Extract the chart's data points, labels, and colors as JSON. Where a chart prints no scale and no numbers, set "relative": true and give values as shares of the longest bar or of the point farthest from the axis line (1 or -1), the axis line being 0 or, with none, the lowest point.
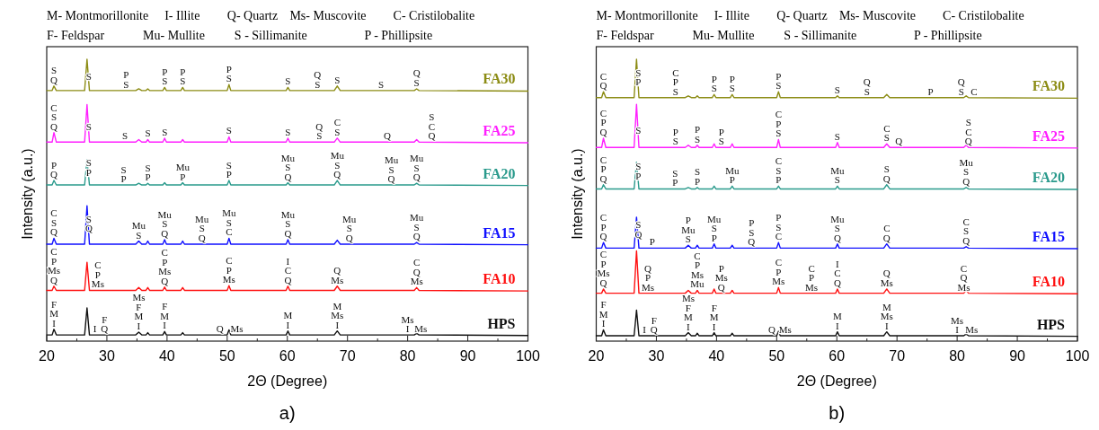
{
  "chart_data": [
    {
      "type": "line",
      "title": "a)",
      "xlabel": "2Θ (Degree)",
      "ylabel": "Intensity (a.u.)",
      "relative": true,
      "xlim": [
        20,
        100
      ],
      "xticks": [
        20,
        {
          "value": 25,
          "label": null
        },
        30,
        {
          "value": 35,
          "label": null
        },
        40,
        {
          "value": 45,
          "label": null
        },
        50,
        {
          "value": 55,
          "label": null
        },
        60,
        {
          "value": 65,
          "label": null
        },
        70,
        {
          "value": 75,
          "label": null
        },
        80,
        {
          "value": 85,
          "label": null
        },
        90,
        {
          "value": 95,
          "label": null
        },
        100
      ],
      "x": [
        20,
        20.9,
        21.2,
        21.6,
        26.3,
        26.7,
        27.1,
        34.8,
        35.3,
        35.8,
        36.5,
        36.8,
        37.1,
        39.3,
        39.6,
        39.9,
        42.3,
        42.6,
        42.9,
        50,
        50.3,
        50.6,
        59.8,
        60.1,
        60.4,
        67.8,
        68.3,
        68.8,
        81.1,
        81.5,
        81.9,
        100
      ],
      "series": [
        {
          "name": "FA30",
          "color": "#8c8c14",
          "values": [
            0.889,
            0.889,
            0.905,
            0.889,
            0.889,
            1,
            0.889,
            0.889,
            0.895,
            0.889,
            0.889,
            0.895,
            0.889,
            0.889,
            0.9,
            0.889,
            0.889,
            0.9,
            0.889,
            0.889,
            0.91,
            0.889,
            0.889,
            0.9,
            0.889,
            0.889,
            0.905,
            0.889,
            0.889,
            0.895,
            0.889,
            0.887
          ]
        },
        {
          "name": "FA25",
          "color": "#ff1fff",
          "values": [
            0.706,
            0.706,
            0.74,
            0.706,
            0.706,
            0.839,
            0.706,
            0.706,
            0.715,
            0.706,
            0.706,
            0.715,
            0.706,
            0.706,
            0.72,
            0.706,
            0.706,
            0.715,
            0.706,
            0.706,
            0.725,
            0.706,
            0.706,
            0.72,
            0.706,
            0.706,
            0.72,
            0.706,
            0.706,
            0.715,
            0.706,
            0.704
          ]
        },
        {
          "name": "FA20",
          "color": "#2a9a8c",
          "values": [
            0.554,
            0.554,
            0.57,
            0.554,
            0.554,
            0.644,
            0.554,
            0.554,
            0.56,
            0.554,
            0.554,
            0.56,
            0.554,
            0.554,
            0.562,
            0.554,
            0.554,
            0.562,
            0.554,
            0.554,
            0.57,
            0.554,
            0.554,
            0.562,
            0.554,
            0.554,
            0.57,
            0.554,
            0.554,
            0.56,
            0.554,
            0.552
          ]
        },
        {
          "name": "FA15",
          "color": "#1010ff",
          "values": [
            0.344,
            0.344,
            0.365,
            0.344,
            0.344,
            0.48,
            0.344,
            0.344,
            0.355,
            0.344,
            0.344,
            0.355,
            0.344,
            0.344,
            0.36,
            0.344,
            0.344,
            0.355,
            0.344,
            0.344,
            0.365,
            0.344,
            0.344,
            0.36,
            0.344,
            0.344,
            0.358,
            0.344,
            0.344,
            0.35,
            0.344,
            0.342
          ]
        },
        {
          "name": "FA10",
          "color": "#ff1010",
          "values": [
            0.18,
            0.18,
            0.195,
            0.18,
            0.18,
            0.28,
            0.18,
            0.18,
            0.19,
            0.18,
            0.18,
            0.19,
            0.18,
            0.18,
            0.192,
            0.18,
            0.18,
            0.19,
            0.18,
            0.18,
            0.197,
            0.18,
            0.18,
            0.195,
            0.18,
            0.18,
            0.195,
            0.18,
            0.18,
            0.19,
            0.18,
            0.178
          ]
        },
        {
          "name": "HPS",
          "color": "#111111",
          "values": [
            0.022,
            0.022,
            0.042,
            0.022,
            0.022,
            0.118,
            0.022,
            0.022,
            0.032,
            0.022,
            0.022,
            0.03,
            0.022,
            0.022,
            0.034,
            0.022,
            0.022,
            0.03,
            0.022,
            0.022,
            0.04,
            0.022,
            0.022,
            0.036,
            0.022,
            0.022,
            0.036,
            0.022,
            0.022,
            0.028,
            0.022,
            0.02
          ]
        }
      ],
      "annotations": [
        "M- Montmorillonite",
        "I- Illite",
        "Q- Quartz",
        "Ms- Muscovite",
        "C- Cristilobalite",
        "F- Feldspar",
        "Mu- Mullite",
        "S - Sillimanite",
        "P - Phillipsite",
        {
          "text": "S\nQ",
          "x": 21.2,
          "y": 0.905
        },
        {
          "text": "S",
          "x": 27.0,
          "y": 0.917
        },
        {
          "text": "P\nS",
          "x": 33.2,
          "y": 0.889
        },
        {
          "text": "P\nS",
          "x": 39.6,
          "y": 0.9
        },
        {
          "text": "P\nS",
          "x": 42.6,
          "y": 0.9
        },
        {
          "text": "P\nS",
          "x": 50.3,
          "y": 0.91
        },
        {
          "text": "S",
          "x": 60.1,
          "y": 0.9
        },
        {
          "text": "Q\nS",
          "x": 65,
          "y": 0.889
        },
        {
          "text": "S",
          "x": 68.3,
          "y": 0.905
        },
        {
          "text": "S",
          "x": 75.6,
          "y": 0.889
        },
        {
          "text": "Q\nS",
          "x": 81.5,
          "y": 0.895
        },
        {
          "text": "C\nS\nQ",
          "x": 21.2,
          "y": 0.74
        },
        {
          "text": "S",
          "x": 27.0,
          "y": 0.739
        },
        {
          "text": "S",
          "x": 33,
          "y": 0.706
        },
        {
          "text": "S",
          "x": 36.8,
          "y": 0.715
        },
        {
          "text": "S",
          "x": 39.6,
          "y": 0.72
        },
        {
          "text": "S",
          "x": 50.3,
          "y": 0.725
        },
        {
          "text": "S",
          "x": 60.1,
          "y": 0.72
        },
        {
          "text": "Q\nS",
          "x": 65.3,
          "y": 0.706
        },
        {
          "text": "C\nS",
          "x": 68.3,
          "y": 0.72
        },
        {
          "text": "Q",
          "x": 76.6,
          "y": 0.706
        },
        {
          "text": "S\nC\nQ",
          "x": 84,
          "y": 0.706
        },
        {
          "text": "P\nQ",
          "x": 21.2,
          "y": 0.57
        },
        {
          "text": "S\nP",
          "x": 27.0,
          "y": 0.5765
        },
        {
          "text": "S\nP",
          "x": 32.8,
          "y": 0.554
        },
        {
          "text": "S\nP",
          "x": 36.8,
          "y": 0.56
        },
        {
          "text": "Mu\nP",
          "x": 42.6,
          "y": 0.562
        },
        {
          "text": "S\nP",
          "x": 50.3,
          "y": 0.57
        },
        {
          "text": "Mu\nS\nQ",
          "x": 60.1,
          "y": 0.562
        },
        {
          "text": "Mu\nS\nQ",
          "x": 68.3,
          "y": 0.57
        },
        {
          "text": "Mu\nS\nQ",
          "x": 77.3,
          "y": 0.554
        },
        {
          "text": "Mu\nS\nQ",
          "x": 81.5,
          "y": 0.56
        },
        {
          "text": "C\nS\nQ",
          "x": 21.2,
          "y": 0.365
        },
        {
          "text": "S\nQ",
          "x": 27.0,
          "y": 0.378
        },
        {
          "text": "Mu\nS",
          "x": 35.3,
          "y": 0.355
        },
        {
          "text": "Mu\nS\nQ",
          "x": 39.6,
          "y": 0.36
        },
        {
          "text": "Mu\nS\nQ",
          "x": 45.8,
          "y": 0.344
        },
        {
          "text": "Mu\nS\nC",
          "x": 50.3,
          "y": 0.365
        },
        {
          "text": "Mu\nS\nQ",
          "x": 60.1,
          "y": 0.36
        },
        {
          "text": "Mu\nS\nQ",
          "x": 70.3,
          "y": 0.344
        },
        {
          "text": "Mu\nS\nQ",
          "x": 81.5,
          "y": 0.35
        },
        {
          "text": "C\nP\nMs\nQ",
          "x": 21.2,
          "y": 0.195
        },
        {
          "text": "C\nP\nMs",
          "x": 28.5,
          "y": 0.18
        },
        {
          "text": "C\nP\nMs\nQ",
          "x": 39.6,
          "y": 0.192
        },
        {
          "text": "C\nP\nMs",
          "x": 50.3,
          "y": 0.197
        },
        {
          "text": "I\nC\nQ",
          "x": 60.1,
          "y": 0.195
        },
        {
          "text": "Q\nMs",
          "x": 68.3,
          "y": 0.195
        },
        {
          "text": "C\nQ\nMs",
          "x": 81.5,
          "y": 0.19
        },
        {
          "text": "F\nM\nI",
          "x": 21.2,
          "y": 0.042
        },
        {
          "text": "I",
          "x": 28.0,
          "y": 0.022
        },
        {
          "text": "F\nQ",
          "x": 29.6,
          "y": 0.022
        },
        {
          "text": "Ms\nF\nM\nI",
          "x": 35.3,
          "y": 0.032
        },
        {
          "text": "F\nM\nI",
          "x": 39.6,
          "y": 0.034
        },
        {
          "text": "Q",
          "x": 48.8,
          "y": 0.022
        },
        {
          "text": "Ms",
          "x": 51.6,
          "y": 0.022
        },
        {
          "text": "M\nI",
          "x": 60.1,
          "y": 0.036
        },
        {
          "text": "M\nMs\nI",
          "x": 68.3,
          "y": 0.036
        },
        {
          "text": "Ms\nI",
          "x": 80,
          "y": 0.022
        },
        {
          "text": "Ms",
          "x": 82.2,
          "y": 0.022
        }
      ]
    },
    {
      "type": "line",
      "title": "b)",
      "xlabel": "2Θ (Degree)",
      "ylabel": "Intensity (a.u.)",
      "relative": true,
      "xlim": [
        20,
        100
      ],
      "xticks": [
        20,
        {
          "value": 25,
          "label": null
        },
        30,
        {
          "value": 35,
          "label": null
        },
        40,
        {
          "value": 45,
          "label": null
        },
        50,
        {
          "value": 55,
          "label": null
        },
        60,
        {
          "value": 65,
          "label": null
        },
        70,
        {
          "value": 75,
          "label": null
        },
        80,
        {
          "value": 85,
          "label": null
        },
        90,
        {
          "value": 95,
          "label": null
        },
        100
      ],
      "x": [
        20,
        20.9,
        21.2,
        21.6,
        26.3,
        26.7,
        27.1,
        34.8,
        35.3,
        35.8,
        36.5,
        36.8,
        37.1,
        39.3,
        39.6,
        39.9,
        42.3,
        42.6,
        42.9,
        50,
        50.3,
        50.6,
        59.8,
        60.1,
        60.4,
        67.8,
        68.3,
        68.8,
        81.1,
        81.5,
        81.9,
        100
      ],
      "series": [
        {
          "name": "FA30",
          "color": "#8c8c14",
          "values": [
            0.864,
            0.864,
            0.885,
            0.864,
            0.864,
            1,
            0.864,
            0.864,
            0.87,
            0.864,
            0.864,
            0.87,
            0.864,
            0.864,
            0.875,
            0.864,
            0.864,
            0.875,
            0.864,
            0.864,
            0.885,
            0.864,
            0.864,
            0.87,
            0.864,
            0.864,
            0.875,
            0.864,
            0.864,
            0.87,
            0.864,
            0.862
          ]
        },
        {
          "name": "FA25",
          "color": "#ff1fff",
          "values": [
            0.687,
            0.687,
            0.72,
            0.687,
            0.687,
            0.84,
            0.687,
            0.687,
            0.695,
            0.687,
            0.687,
            0.695,
            0.687,
            0.687,
            0.7,
            0.687,
            0.687,
            0.7,
            0.687,
            0.687,
            0.715,
            0.687,
            0.687,
            0.705,
            0.687,
            0.687,
            0.7,
            0.687,
            0.687,
            0.695,
            0.687,
            0.685
          ]
        },
        {
          "name": "FA20",
          "color": "#2a9a8c",
          "values": [
            0.54,
            0.54,
            0.555,
            0.54,
            0.54,
            0.635,
            0.54,
            0.54,
            0.545,
            0.54,
            0.54,
            0.545,
            0.54,
            0.54,
            0.55,
            0.54,
            0.54,
            0.55,
            0.54,
            0.54,
            0.55,
            0.54,
            0.54,
            0.55,
            0.54,
            0.54,
            0.555,
            0.54,
            0.54,
            0.545,
            0.54,
            0.538
          ]
        },
        {
          "name": "FA15",
          "color": "#1010ff",
          "values": [
            0.33,
            0.33,
            0.35,
            0.33,
            0.33,
            0.44,
            0.33,
            0.33,
            0.34,
            0.33,
            0.33,
            0.34,
            0.33,
            0.33,
            0.345,
            0.33,
            0.33,
            0.34,
            0.33,
            0.33,
            0.35,
            0.33,
            0.33,
            0.345,
            0.33,
            0.33,
            0.345,
            0.33,
            0.33,
            0.335,
            0.33,
            0.328
          ]
        },
        {
          "name": "FA10",
          "color": "#ff1010",
          "values": [
            0.17,
            0.17,
            0.185,
            0.17,
            0.17,
            0.32,
            0.17,
            0.17,
            0.18,
            0.17,
            0.17,
            0.18,
            0.17,
            0.17,
            0.185,
            0.17,
            0.17,
            0.18,
            0.17,
            0.17,
            0.19,
            0.17,
            0.17,
            0.185,
            0.17,
            0.17,
            0.185,
            0.17,
            0.17,
            0.18,
            0.17,
            0.168
          ]
        },
        {
          "name": "HPS",
          "color": "#111111",
          "values": [
            0.019,
            0.019,
            0.04,
            0.019,
            0.019,
            0.11,
            0.019,
            0.019,
            0.03,
            0.019,
            0.019,
            0.028,
            0.019,
            0.019,
            0.03,
            0.019,
            0.019,
            0.028,
            0.019,
            0.019,
            0.035,
            0.019,
            0.019,
            0.033,
            0.019,
            0.019,
            0.033,
            0.019,
            0.019,
            0.025,
            0.019,
            0.017
          ]
        }
      ],
      "annotations": [
        "M- Montmorillonite",
        "I- Illite",
        "Q- Quartz",
        "Ms- Muscovite",
        "C- Cristilobalite",
        "F- Feldspar",
        "Mu- Mullite",
        "S - Sillimanite",
        "P - Phillipsite",
        {
          "text": "C\nQ",
          "x": 21.2,
          "y": 0.885
        },
        {
          "text": "S\nP",
          "x": 27.0,
          "y": 0.898
        },
        {
          "text": "C\nP\nS",
          "x": 33.2,
          "y": 0.864
        },
        {
          "text": "P\nS",
          "x": 39.6,
          "y": 0.875
        },
        {
          "text": "P\nS",
          "x": 42.6,
          "y": 0.875
        },
        {
          "text": "P\nS",
          "x": 50.3,
          "y": 0.885
        },
        {
          "text": "S",
          "x": 60.1,
          "y": 0.87
        },
        {
          "text": "Q\nS",
          "x": 65,
          "y": 0.864
        },
        {
          "text": "P",
          "x": 75.6,
          "y": 0.864
        },
        {
          "text": "Q\nS",
          "x": 80.7,
          "y": 0.864
        },
        {
          "text": "C",
          "x": 82.8,
          "y": 0.864
        },
        {
          "text": "C\nP\nQ",
          "x": 21.2,
          "y": 0.72
        },
        {
          "text": "S",
          "x": 27.0,
          "y": 0.725
        },
        {
          "text": "P\nS",
          "x": 33.2,
          "y": 0.687
        },
        {
          "text": "P\nS",
          "x": 36.8,
          "y": 0.695
        },
        {
          "text": "P\nS",
          "x": 40.8,
          "y": 0.687
        },
        {
          "text": "C\nP\nS",
          "x": 50.3,
          "y": 0.715
        },
        {
          "text": "S",
          "x": 60.1,
          "y": 0.705
        },
        {
          "text": "C\nS",
          "x": 68.3,
          "y": 0.7
        },
        {
          "text": "Q",
          "x": 70.3,
          "y": 0.687
        },
        {
          "text": "S\nC\nQ",
          "x": 81.9,
          "y": 0.687
        },
        {
          "text": "C\nP\nQ",
          "x": 21.2,
          "y": 0.555
        },
        {
          "text": "S\nP",
          "x": 27.0,
          "y": 0.564
        },
        {
          "text": "S\nP",
          "x": 33.1,
          "y": 0.54
        },
        {
          "text": "S\nP",
          "x": 36.8,
          "y": 0.545
        },
        {
          "text": "Mu\nP",
          "x": 42.6,
          "y": 0.55
        },
        {
          "text": "C\nS\nP",
          "x": 50.3,
          "y": 0.55
        },
        {
          "text": "Mu\nS",
          "x": 60.1,
          "y": 0.55
        },
        {
          "text": "S\nQ",
          "x": 68.3,
          "y": 0.555
        },
        {
          "text": "Mu\nS\nQ",
          "x": 81.5,
          "y": 0.545
        },
        {
          "text": "C\nP\nQ",
          "x": 21.2,
          "y": 0.35
        },
        {
          "text": "S\nQ",
          "x": 27.0,
          "y": 0.3575
        },
        {
          "text": "P",
          "x": 29.3,
          "y": 0.33
        },
        {
          "text": "P\nMu\nS",
          "x": 35.3,
          "y": 0.34
        },
        {
          "text": "Mu\nS\nP",
          "x": 39.6,
          "y": 0.345
        },
        {
          "text": "P\nS\nQ",
          "x": 45.8,
          "y": 0.33
        },
        {
          "text": "P\nS\nC",
          "x": 50.3,
          "y": 0.35
        },
        {
          "text": "Mu\nS\nQ",
          "x": 60.1,
          "y": 0.345
        },
        {
          "text": "C\nQ",
          "x": 68.3,
          "y": 0.345
        },
        {
          "text": "C\nS\nQ",
          "x": 81.5,
          "y": 0.335
        },
        {
          "text": "C\nP\nMs\nQ",
          "x": 21.2,
          "y": 0.185
        },
        {
          "text": "Q\nP\nMs",
          "x": 28.6,
          "y": 0.17
        },
        {
          "text": "C\nP\nMs\nMu",
          "x": 36.8,
          "y": 0.18
        },
        {
          "text": "P\nMs\nQ",
          "x": 40.8,
          "y": 0.17
        },
        {
          "text": "C\nP\nMs",
          "x": 50.3,
          "y": 0.19
        },
        {
          "text": "C\nP\nMs",
          "x": 55.8,
          "y": 0.17
        },
        {
          "text": "I\nC\nQ",
          "x": 60.1,
          "y": 0.185
        },
        {
          "text": "Q\nMs",
          "x": 68.3,
          "y": 0.185
        },
        {
          "text": "C\nQ\nMs",
          "x": 81.1,
          "y": 0.17
        },
        {
          "text": "F\nM\nI",
          "x": 21.2,
          "y": 0.04
        },
        {
          "text": "I",
          "x": 28.0,
          "y": 0.019
        },
        {
          "text": "F\nQ",
          "x": 29.6,
          "y": 0.019
        },
        {
          "text": "Ms\nF\nM\nI",
          "x": 35.3,
          "y": 0.03
        },
        {
          "text": "F\nM\nI",
          "x": 39.6,
          "y": 0.03
        },
        {
          "text": "Q",
          "x": 49.2,
          "y": 0.019
        },
        {
          "text": "Ms",
          "x": 51.4,
          "y": 0.019
        },
        {
          "text": "M\nI",
          "x": 60.1,
          "y": 0.033
        },
        {
          "text": "M\nMs\nI",
          "x": 68.3,
          "y": 0.033
        },
        {
          "text": "Ms\nI",
          "x": 80,
          "y": 0.019
        },
        {
          "text": "Ms",
          "x": 82.4,
          "y": 0.019
        }
      ]
    }
  ]
}
